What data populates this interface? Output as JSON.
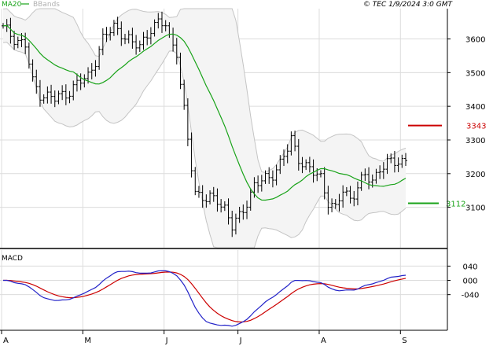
{
  "header": {
    "ma_label": "MA20",
    "bbands_label": "BBands",
    "copyright": "© TEC 1/9/2024 3:0 GMT"
  },
  "colors": {
    "price": "#000000",
    "ma20": "#19a319",
    "bbands": "#c0c0c0",
    "resistance": "#cc0000",
    "support": "#19a319",
    "macd": "#2323c8",
    "signal": "#cc0000",
    "grid": "#dcdcdc",
    "band_bg": "#f2f2f2"
  },
  "chart_data": [
    {
      "type": "ohlc",
      "panel": "price",
      "y_ticks": [
        3100,
        3200,
        3300,
        3400,
        3500,
        3600
      ],
      "ylim": [
        2980,
        3690
      ],
      "months": [
        "A",
        "M",
        "J",
        "J",
        "A",
        "S"
      ],
      "resistance": {
        "value": 3343,
        "label": "3343"
      },
      "support": {
        "value": 3112,
        "label": "3112"
      },
      "grid": true
    },
    {
      "type": "line",
      "panel": "macd",
      "title": "MACD",
      "y_ticks": [
        {
          "value": 40,
          "label": "040"
        },
        {
          "value": 0,
          "label": "000"
        },
        {
          "value": -40,
          "label": "-040"
        }
      ],
      "ylim": [
        -140,
        85
      ],
      "grid": true
    }
  ]
}
